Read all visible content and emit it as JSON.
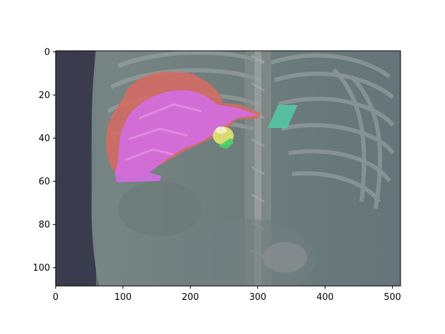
{
  "figure": {
    "description_free": true,
    "background": "#ffffff"
  },
  "axes": {
    "x_ticks": [
      {
        "value": 0,
        "label": "0"
      },
      {
        "value": 100,
        "label": "100"
      },
      {
        "value": 200,
        "label": "200"
      },
      {
        "value": 300,
        "label": "300"
      },
      {
        "value": 400,
        "label": "400"
      },
      {
        "value": 500,
        "label": "500"
      }
    ],
    "y_ticks": [
      {
        "value": 0,
        "label": "0"
      },
      {
        "value": 20,
        "label": "20"
      },
      {
        "value": 40,
        "label": "40"
      },
      {
        "value": 60,
        "label": "60"
      },
      {
        "value": 80,
        "label": "80"
      },
      {
        "value": 100,
        "label": "100"
      }
    ],
    "x_range": [
      0,
      512
    ],
    "y_range": [
      108.5,
      -0.5
    ],
    "y_inverted": true
  },
  "image": {
    "type": "ct-coronal-overlay",
    "base_color": "#5d6d6c",
    "segment_colors": {
      "liver": "#e06060",
      "liver_highlight": "#d070e0",
      "gallbladder": "#e0e070",
      "kidney_green": "#50d070",
      "spleen_teal": "#50c8a0"
    }
  }
}
